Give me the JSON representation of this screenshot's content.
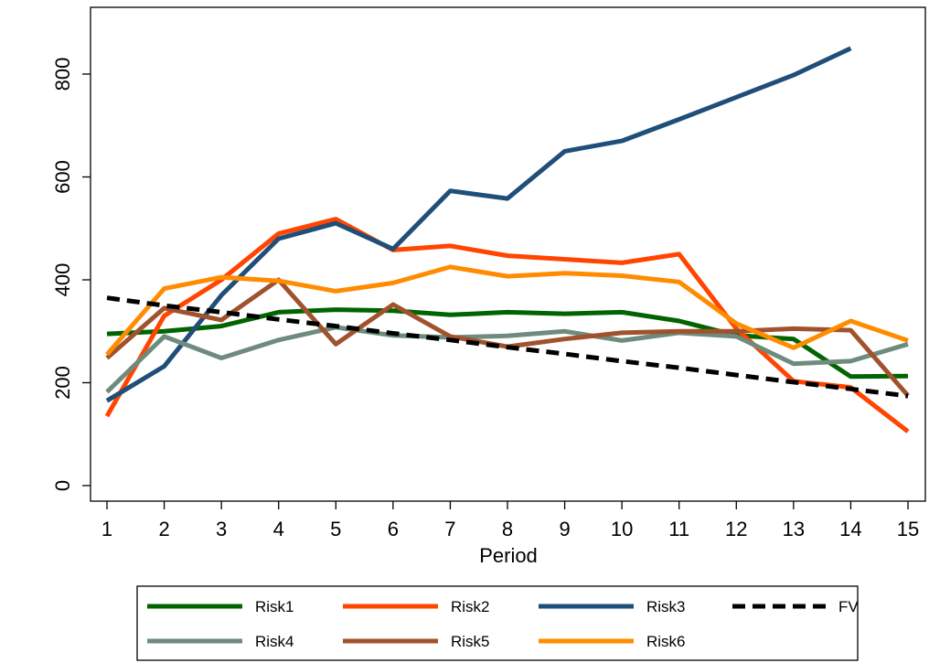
{
  "chart_data": {
    "type": "line",
    "title": "",
    "xlabel": "Period",
    "ylabel": "",
    "x": [
      1,
      2,
      3,
      4,
      5,
      6,
      7,
      8,
      9,
      10,
      11,
      12,
      13,
      14,
      15
    ],
    "x_ticks": [
      "1",
      "2",
      "3",
      "4",
      "5",
      "6",
      "7",
      "8",
      "9",
      "10",
      "11",
      "12",
      "13",
      "14",
      "15"
    ],
    "y_ticks": [
      "0",
      "200",
      "400",
      "600",
      "800"
    ],
    "xlim": [
      1,
      15
    ],
    "ylim": [
      0,
      880
    ],
    "grid": false,
    "legend_position": "bottom",
    "series": [
      {
        "name": "Risk1",
        "color": "#006400",
        "dash": "solid",
        "values": [
          295,
          300,
          310,
          337,
          342,
          340,
          332,
          337,
          334,
          337,
          320,
          292,
          285,
          212,
          213
        ]
      },
      {
        "name": "Risk2",
        "color": "#FF4500",
        "dash": "solid",
        "values": [
          135,
          330,
          400,
          490,
          518,
          458,
          466,
          447,
          440,
          433,
          450,
          305,
          203,
          191,
          105
        ]
      },
      {
        "name": "Risk3",
        "color": "#1F4E79",
        "dash": "solid",
        "values": [
          165,
          232,
          370,
          480,
          510,
          460,
          573,
          558,
          650,
          670,
          712,
          755,
          798,
          850,
          null
        ]
      },
      {
        "name": "Risk4",
        "color": "#6E8B7D",
        "dash": "solid",
        "values": [
          182,
          290,
          248,
          283,
          308,
          292,
          288,
          291,
          300,
          282,
          297,
          290,
          237,
          242,
          275
        ]
      },
      {
        "name": "Risk5",
        "color": "#A0522D",
        "dash": "solid",
        "values": [
          248,
          345,
          322,
          400,
          275,
          352,
          290,
          270,
          285,
          297,
          300,
          300,
          305,
          302,
          175
        ]
      },
      {
        "name": "Risk6",
        "color": "#FF8C00",
        "dash": "solid",
        "values": [
          255,
          383,
          405,
          398,
          378,
          394,
          425,
          407,
          413,
          408,
          396,
          315,
          268,
          320,
          282
        ]
      },
      {
        "name": "FV",
        "color": "#000000",
        "dash": "dashed",
        "values": [
          365,
          350,
          337,
          323,
          310,
          296,
          283,
          269,
          256,
          242,
          229,
          215,
          201,
          188,
          174
        ]
      }
    ]
  }
}
